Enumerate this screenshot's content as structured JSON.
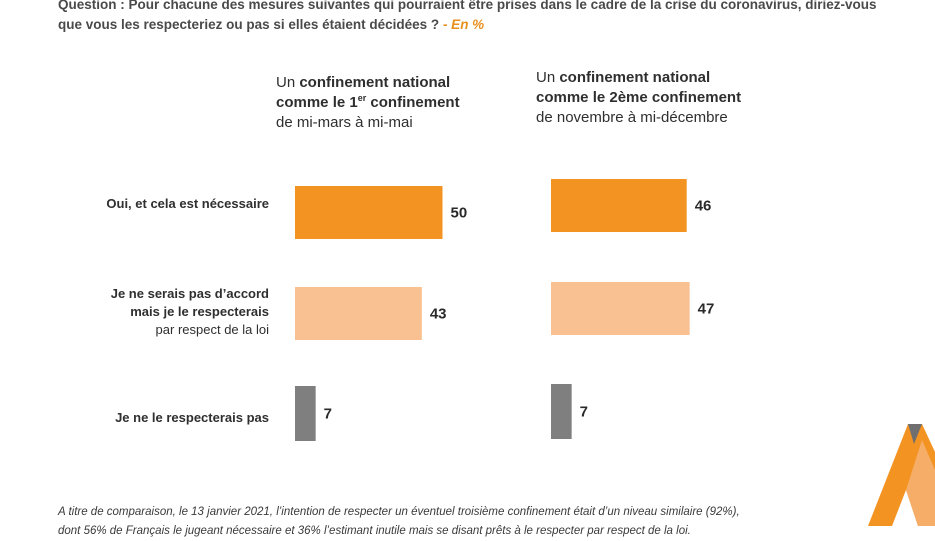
{
  "question": {
    "label": "Question :",
    "text": "Pour chacune des mesures suivantes qui pourraient être prises dans le cadre de la crise du coronavirus, diriez-vous que vous les respecteriez ou pas si elles étaient décidées ?",
    "unit": "- En %"
  },
  "columns": [
    {
      "line1_pre": "Un ",
      "line1_bold": "confinement national",
      "line2_bold": "comme le 1",
      "line2_sup": "er",
      "line2_rest": " confinement",
      "line3": "de mi-mars à mi-mai"
    },
    {
      "line1_pre": "Un ",
      "line1_bold": "confinement national",
      "line2_bold": "comme le 2ème confinement",
      "line3": "de novembre à mi-décembre"
    }
  ],
  "rows": [
    {
      "label_bold": "Oui, et cela est nécessaire"
    },
    {
      "label_bold_1": "Je ne serais pas d’accord",
      "label_bold_2": "mais je le respecterais",
      "label_normal": "par respect de la loi"
    },
    {
      "label_bold": "Je ne le respecterais pas"
    }
  ],
  "chart_data": {
    "type": "bar",
    "orientation": "horizontal",
    "unit": "%",
    "categories": [
      "Oui, et cela est nécessaire",
      "Je ne serais pas d’accord mais je le respecterais par respect de la loi",
      "Je ne le respecterais pas"
    ],
    "series": [
      {
        "name": "Un confinement national comme le 1er confinement de mi-mars à mi-mai",
        "values": [
          50,
          43,
          7
        ]
      },
      {
        "name": "Un confinement national comme le 2ème confinement de novembre à mi-décembre",
        "values": [
          46,
          47,
          7
        ]
      }
    ],
    "colors": [
      "#f39322",
      "#f9c191",
      "#7f7f7f"
    ]
  },
  "footnote": {
    "line1": "A titre de comparaison, le 13 janvier 2021, l’intention de respecter un éventuel troisième confinement était d’un niveau similaire (92%),",
    "line2": "dont 56% de Français le jugeant nécessaire et 36% l’estimant inutile mais se disant prêts à le respecter par respect de la loi."
  }
}
